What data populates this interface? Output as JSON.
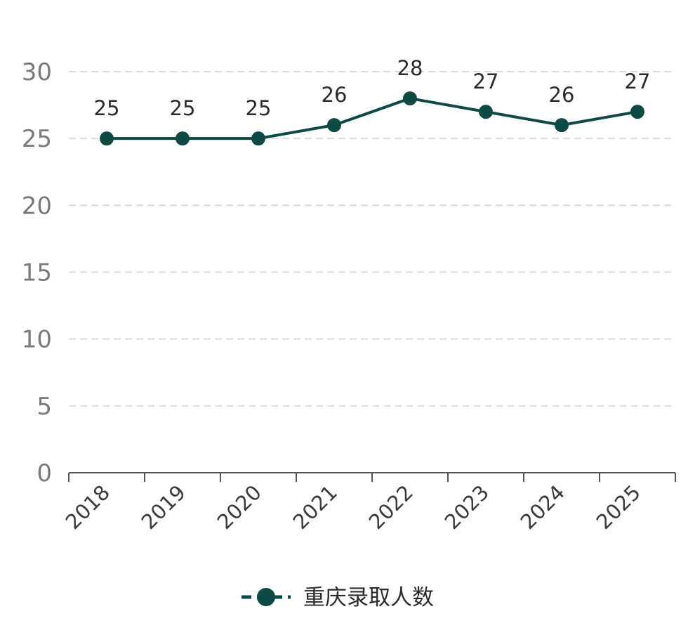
{
  "chart_data": {
    "type": "line",
    "categories": [
      "2018",
      "2019",
      "2020",
      "2021",
      "2022",
      "2023",
      "2024",
      "2025"
    ],
    "series": [
      {
        "name": "重庆录取人数",
        "values": [
          25,
          25,
          25,
          26,
          28,
          27,
          26,
          27
        ],
        "data_labels": [
          "25",
          "25",
          "25",
          "26",
          "28",
          "27",
          "26",
          "27"
        ]
      }
    ],
    "ylim": [
      0,
      30
    ],
    "yticks": [
      0,
      5,
      10,
      15,
      20,
      25,
      30
    ],
    "y_tick_labels": [
      "0",
      "5",
      "10",
      "15",
      "20",
      "25",
      "30"
    ],
    "x_tick_rotation": "-45",
    "grid": "horizontal dashed",
    "legend": "bottom-center",
    "colors": {
      "line": "#0e4a45",
      "grid": "#dcdcdc",
      "axis": "#555555"
    }
  }
}
